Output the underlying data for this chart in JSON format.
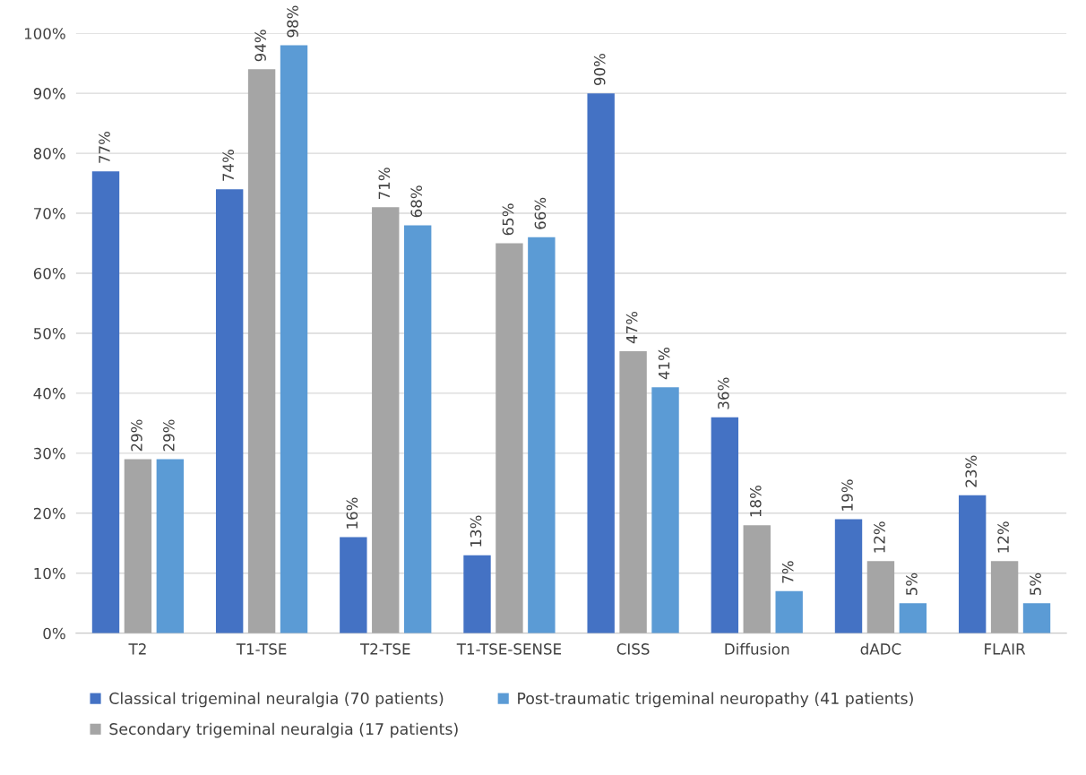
{
  "chart_data": {
    "type": "bar",
    "categories": [
      "T2",
      "T1-TSE",
      "T2-TSE",
      "T1-TSE-SENSE",
      "CISS",
      "Diffusion",
      "dADC",
      "FLAIR"
    ],
    "series": [
      {
        "name": "Classical trigeminal neuralgia (70 patients)",
        "color": "#4472c4",
        "values": [
          77,
          74,
          16,
          13,
          90,
          36,
          19,
          23
        ],
        "value_labels": [
          "77%",
          "74%",
          "16%",
          "13%",
          "90%",
          "36%",
          "19%",
          "23%"
        ]
      },
      {
        "name": "Secondary trigeminal neuralgia (17 patients)",
        "color": "#a5a5a5",
        "values": [
          29,
          94,
          71,
          65,
          47,
          18,
          12,
          12
        ],
        "value_labels": [
          "29%",
          "94%",
          "71%",
          "65%",
          "47%",
          "18%",
          "12%",
          "12%"
        ]
      },
      {
        "name": "Post-traumatic trigeminal neuropathy (41 patients)",
        "color": "#5b9bd5",
        "values": [
          29,
          98,
          68,
          66,
          41,
          7,
          5,
          5
        ],
        "value_labels": [
          "29%",
          "98%",
          "68%",
          "66%",
          "41%",
          "7%",
          "5%",
          "5%"
        ]
      }
    ],
    "ylim": [
      0,
      100
    ],
    "yticks": [
      {
        "value": 0,
        "label": "0%"
      },
      {
        "value": 10,
        "label": "10%"
      },
      {
        "value": 20,
        "label": "20%"
      },
      {
        "value": 30,
        "label": "30%"
      },
      {
        "value": 40,
        "label": "40%"
      },
      {
        "value": 50,
        "label": "50%"
      },
      {
        "value": 60,
        "label": "60%"
      },
      {
        "value": 70,
        "label": "70%"
      },
      {
        "value": 80,
        "label": "80%"
      },
      {
        "value": 90,
        "label": "90%"
      },
      {
        "value": 100,
        "label": "100%"
      }
    ],
    "grid": "y",
    "legend": "bottom"
  }
}
